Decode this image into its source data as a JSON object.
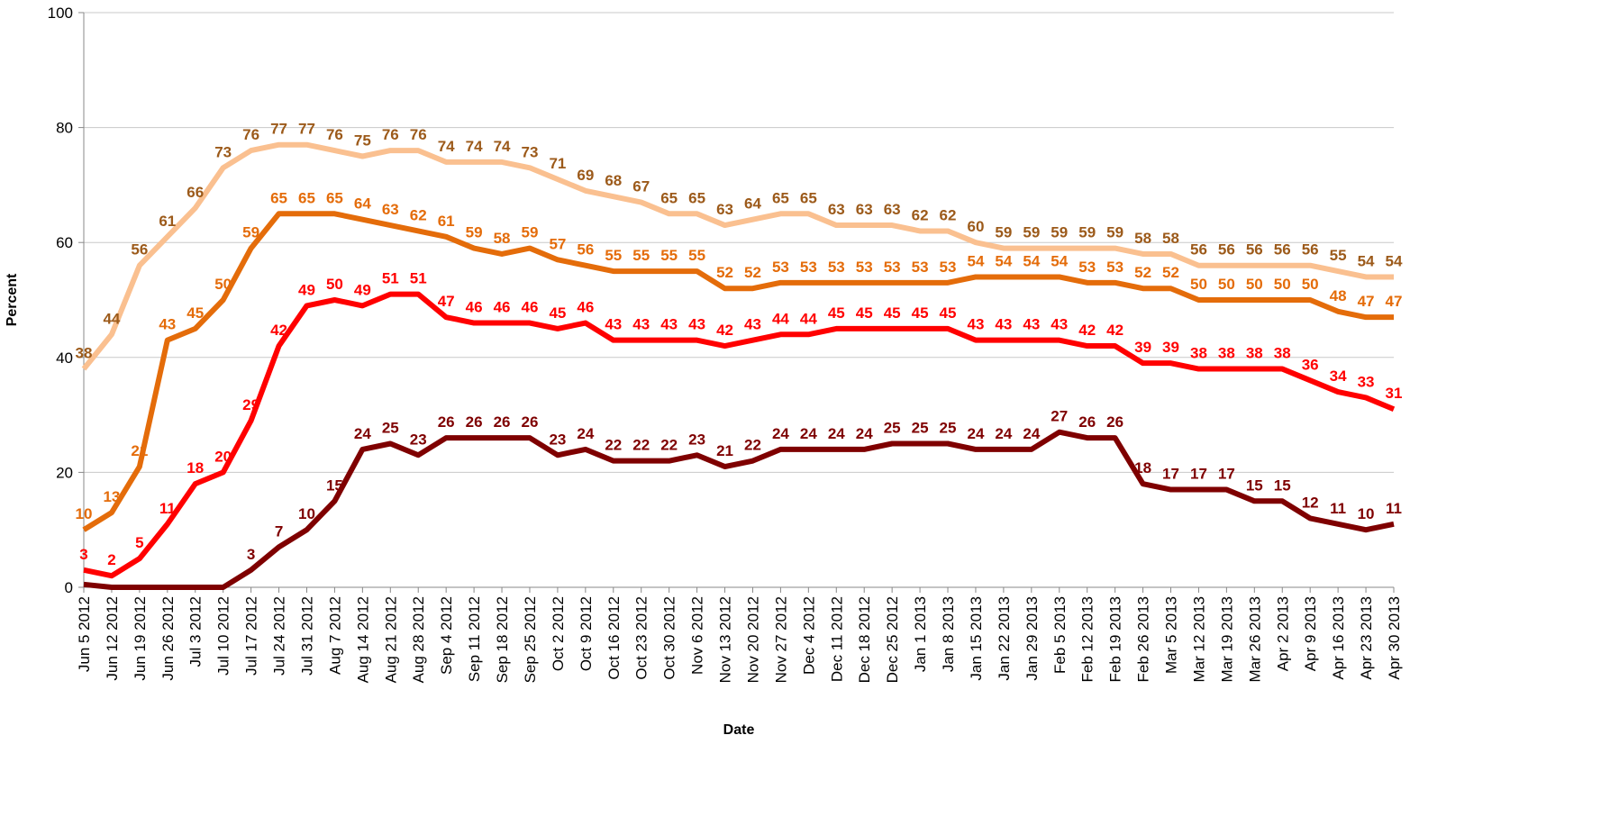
{
  "chart_data": {
    "type": "line",
    "xlabel": "Date",
    "ylabel": "Percent",
    "categories": [
      "Jun 5 2012",
      "Jun 12 2012",
      "Jun 19 2012",
      "Jun 26 2012",
      "Jul 3 2012",
      "Jul 10 2012",
      "Jul 17 2012",
      "Jul 24 2012",
      "Jul 31 2012",
      "Aug 7 2012",
      "Aug 14 2012",
      "Aug 21 2012",
      "Aug 28 2012",
      "Sep 4 2012",
      "Sep 11 2012",
      "Sep 18 2012",
      "Sep 25 2012",
      "Oct 2 2012",
      "Oct 9 2012",
      "Oct 16 2012",
      "Oct 23 2012",
      "Oct 30 2012",
      "Nov 6 2012",
      "Nov 13 2012",
      "Nov 20 2012",
      "Nov 27 2012",
      "Dec 4 2012",
      "Dec 11 2012",
      "Dec 18 2012",
      "Dec 25 2012",
      "Jan 1 2013",
      "Jan 8 2013",
      "Jan 15 2013",
      "Jan 22 2013",
      "Jan 29 2013",
      "Feb 5 2013",
      "Feb 12 2013",
      "Feb 19 2013",
      "Feb 26 2013",
      "Mar 5 2013",
      "Mar 12 2013",
      "Mar 19 2013",
      "Mar 26 2013",
      "Apr 2 2013",
      "Apr 9 2013",
      "Apr 16 2013",
      "Apr 23 2013",
      "Apr 30 2013"
    ],
    "series": [
      {
        "color": "#fac090",
        "label_color": "#9c5a1a",
        "values": [
          38,
          44,
          56,
          61,
          66,
          73,
          76,
          77,
          77,
          76,
          75,
          76,
          76,
          74,
          74,
          74,
          73,
          71,
          69,
          68,
          67,
          65,
          65,
          63,
          64,
          65,
          65,
          63,
          63,
          63,
          62,
          62,
          60,
          59,
          59,
          59,
          59,
          59,
          58,
          58,
          56,
          56,
          56,
          56,
          56,
          55,
          54,
          54
        ]
      },
      {
        "color": "#e46c0a",
        "label_color": "#e46c0a",
        "values": [
          10,
          13,
          21,
          43,
          45,
          50,
          59,
          65,
          65,
          65,
          64,
          63,
          62,
          61,
          59,
          58,
          59,
          57,
          56,
          55,
          55,
          55,
          55,
          52,
          52,
          53,
          53,
          53,
          53,
          53,
          53,
          53,
          54,
          54,
          54,
          54,
          53,
          53,
          52,
          52,
          50,
          50,
          50,
          50,
          50,
          48,
          47,
          47
        ]
      },
      {
        "color": "#ff0000",
        "label_color": "#ff0000",
        "values": [
          3,
          2,
          5,
          11,
          18,
          20,
          29,
          42,
          49,
          50,
          49,
          51,
          51,
          47,
          46,
          46,
          46,
          45,
          46,
          43,
          43,
          43,
          43,
          42,
          43,
          44,
          44,
          45,
          45,
          45,
          45,
          45,
          43,
          43,
          43,
          43,
          42,
          42,
          39,
          39,
          38,
          38,
          38,
          38,
          36,
          34,
          33,
          31
        ]
      },
      {
        "color": "#7f0000",
        "label_color": "#7f0000",
        "values": [
          0.5,
          0,
          0,
          0,
          0,
          0,
          3,
          7,
          10,
          15,
          24,
          25,
          23,
          26,
          26,
          26,
          26,
          23,
          24,
          22,
          22,
          22,
          23,
          21,
          22,
          24,
          24,
          24,
          24,
          25,
          25,
          25,
          24,
          24,
          24,
          27,
          26,
          26,
          18,
          17,
          17,
          17,
          15,
          15,
          12,
          11,
          10,
          11
        ],
        "value_labels": [
          null,
          null,
          null,
          null,
          null,
          null,
          "3",
          "7",
          "10",
          "15",
          "24",
          "25",
          "23",
          "26",
          "26",
          "26",
          "26",
          "23",
          "24",
          "22",
          "22",
          "22",
          "23",
          "21",
          "22",
          "24",
          "24",
          "24",
          "24",
          "25",
          "25",
          "25",
          "24",
          "24",
          "24",
          "27",
          "26",
          "26",
          "18",
          "17",
          "17",
          "17",
          "15",
          "15",
          "12",
          "11",
          "10",
          "11"
        ]
      }
    ],
    "ylim": [
      0,
      100
    ],
    "yticks": [
      0,
      20,
      40,
      60,
      80,
      100
    ],
    "grid": true
  }
}
